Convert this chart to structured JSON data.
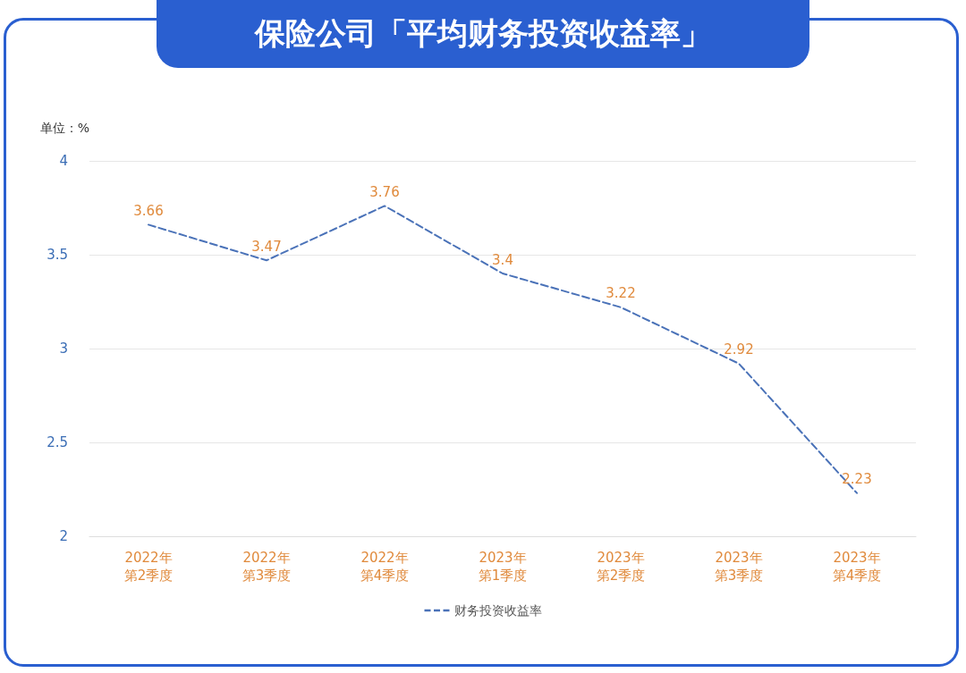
{
  "chart_data": {
    "type": "line",
    "title": "保险公司「平均财务投资收益率」",
    "ylabel": "单位：%",
    "categories": [
      "2022年第2季度",
      "2022年第3季度",
      "2022年第4季度",
      "2023年第1季度",
      "2023年第2季度",
      "2023年第3季度",
      "2023年第4季度"
    ],
    "series": [
      {
        "name": "财务投资收益率",
        "color": "#4a72b8",
        "values": [
          3.66,
          3.47,
          3.76,
          3.4,
          3.22,
          2.92,
          2.23
        ]
      }
    ],
    "ylim": [
      2,
      4
    ],
    "yticks": [
      2,
      2.5,
      3,
      3.5,
      4
    ],
    "grid": "y",
    "legend": "bottom",
    "data_labels": true,
    "marker": "none",
    "line_style": "dashed"
  }
}
